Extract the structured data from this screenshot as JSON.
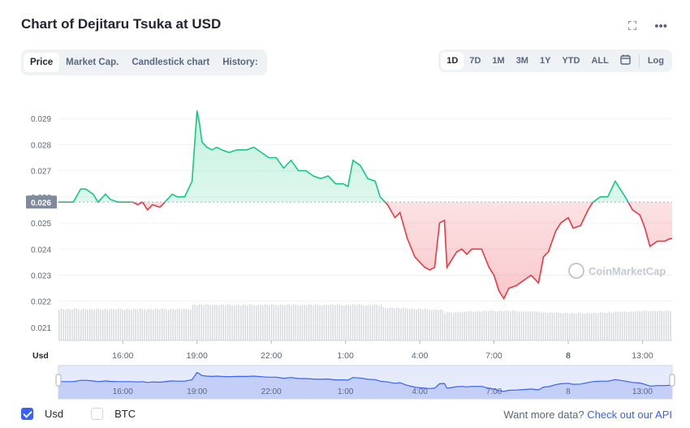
{
  "title": "Chart of Dejitaru Tsuka at USD",
  "icons": {
    "fullscreen": "fullscreen-icon",
    "more": "more-dots-icon"
  },
  "tabs": [
    "Price",
    "Market Cap.",
    "Candlestick chart",
    "History:"
  ],
  "ranges": [
    "1D",
    "7D",
    "1M",
    "3M",
    "1Y",
    "YTD",
    "ALL"
  ],
  "log_label": "Log",
  "legend": {
    "usd": "Usd",
    "btc": "BTC"
  },
  "api": {
    "text": "Want more data?",
    "link": "Check out our API"
  },
  "watermark": "CoinMarketCap",
  "axis_unit": "Usd",
  "colors": {
    "up": "#16c784",
    "down": "#ea3943",
    "accent": "#3861fb",
    "volume": "#d6d9df"
  },
  "chart_data": {
    "type": "line",
    "title": "Chart of Dejitaru Tsuka at USD",
    "ylabel": "",
    "xlabel": "",
    "ylim": [
      0.0205,
      0.03
    ],
    "yticks": [
      0.021,
      0.022,
      0.023,
      0.024,
      0.025,
      0.026,
      0.027,
      0.028,
      0.029
    ],
    "reference_value": 0.0258,
    "current_label": "0.026",
    "x_tick_labels": [
      "16:00",
      "19:00",
      "22:00",
      "1:00",
      "4:00",
      "7:00",
      "8",
      "13:00"
    ],
    "x_tick_hours": [
      2,
      5,
      8,
      11,
      14,
      17,
      20,
      23
    ],
    "x_range_hours": [
      -0.6,
      24.2
    ],
    "series": [
      {
        "name": "",
        "x": [
          -0.6,
          0,
          0.3,
          0.5,
          0.8,
          1,
          1.3,
          1.5,
          1.8,
          2,
          2.4,
          2.6,
          2.8,
          3,
          3.2,
          3.5,
          3.8,
          4,
          4.2,
          4.5,
          4.8,
          5.0,
          5.1,
          5.2,
          5.4,
          5.6,
          5.8,
          6.0,
          6.3,
          6.6,
          7,
          7.3,
          7.6,
          7.9,
          8.2,
          8.5,
          8.8,
          9.1,
          9.4,
          9.7,
          10,
          10.3,
          10.6,
          10.9,
          11.1,
          11.3,
          11.6,
          11.9,
          12.2,
          12.4,
          12.7,
          13,
          13.2,
          13.5,
          13.8,
          14.0,
          14.2,
          14.4,
          14.6,
          14.8,
          15.0,
          15.1,
          15.3,
          15.5,
          15.7,
          15.9,
          16.1,
          16.3,
          16.5,
          16.8,
          17.0,
          17.2,
          17.4,
          17.6,
          17.9,
          18.2,
          18.5,
          18.8,
          19.0,
          19.2,
          19.5,
          19.7,
          20.0,
          20.2,
          20.5,
          20.8,
          21.0,
          21.3,
          21.6,
          21.9,
          22.1,
          22.3,
          22.6,
          22.9,
          23.1,
          23.3,
          23.6,
          23.9,
          24.1,
          24.2
        ],
        "y": [
          0.0258,
          0.0258,
          0.0263,
          0.0263,
          0.0261,
          0.0258,
          0.0261,
          0.0259,
          0.0258,
          0.0258,
          0.0258,
          0.0257,
          0.0258,
          0.0255,
          0.0257,
          0.0256,
          0.0259,
          0.0261,
          0.026,
          0.026,
          0.0266,
          0.0293,
          0.0288,
          0.0281,
          0.0279,
          0.0278,
          0.0279,
          0.0278,
          0.0277,
          0.0278,
          0.0278,
          0.0279,
          0.0277,
          0.0275,
          0.0275,
          0.0271,
          0.0274,
          0.027,
          0.027,
          0.0268,
          0.0267,
          0.0268,
          0.0265,
          0.0265,
          0.0264,
          0.0274,
          0.0272,
          0.0267,
          0.0266,
          0.026,
          0.0257,
          0.0252,
          0.0254,
          0.0244,
          0.0237,
          0.0235,
          0.0233,
          0.0232,
          0.0233,
          0.025,
          0.0251,
          0.0233,
          0.0236,
          0.0239,
          0.024,
          0.0238,
          0.024,
          0.024,
          0.024,
          0.0233,
          0.023,
          0.0224,
          0.0221,
          0.0225,
          0.0226,
          0.0228,
          0.023,
          0.0227,
          0.0237,
          0.0239,
          0.0247,
          0.025,
          0.0252,
          0.0248,
          0.0249,
          0.0255,
          0.0258,
          0.026,
          0.026,
          0.0266,
          0.0263,
          0.026,
          0.0255,
          0.0253,
          0.0248,
          0.0241,
          0.0243,
          0.0243,
          0.0244,
          0.0244
        ]
      }
    ],
    "volume_bars": 280
  }
}
